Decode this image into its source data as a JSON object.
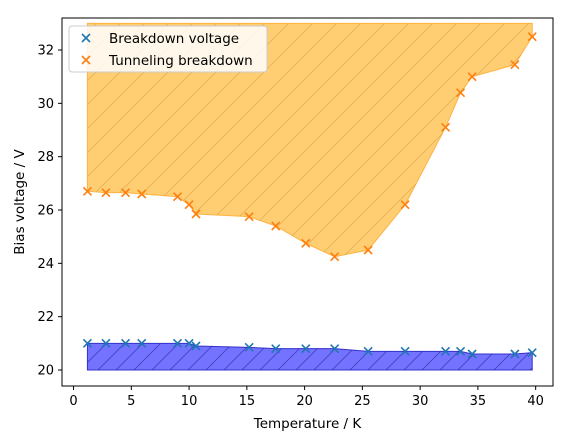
{
  "chart_data": {
    "type": "scatter",
    "xlabel": "Temperature / K",
    "ylabel": "Bias voltage / V",
    "xlim": [
      -1,
      41.5
    ],
    "ylim": [
      19.4,
      33.2
    ],
    "xticks": [
      0,
      5,
      10,
      15,
      20,
      25,
      30,
      35,
      40
    ],
    "yticks": [
      20,
      22,
      24,
      26,
      28,
      30,
      32
    ],
    "legend_position": "upper-left",
    "series": [
      {
        "name": "Breakdown voltage",
        "color": "#1f77b4",
        "marker": "x",
        "fill_color": "#0000ff",
        "fill_to": 20,
        "fill_hatch": "/",
        "x": [
          1.2,
          2.8,
          4.5,
          5.9,
          9.0,
          10.0,
          10.6,
          15.2,
          17.5,
          20.1,
          22.6,
          25.5,
          28.7,
          32.2,
          33.5,
          34.5,
          38.2,
          39.7
        ],
        "y": [
          21.0,
          21.0,
          21.0,
          21.0,
          21.0,
          21.0,
          20.9,
          20.85,
          20.8,
          20.8,
          20.8,
          20.7,
          20.7,
          20.7,
          20.7,
          20.6,
          20.6,
          20.65
        ]
      },
      {
        "name": "Tunneling breakdown",
        "color": "#ff7f0e",
        "marker": "x",
        "fill_color": "#ffa500",
        "fill_to": 33,
        "fill_hatch": "/",
        "x": [
          1.2,
          2.8,
          4.5,
          5.9,
          9.0,
          10.0,
          10.6,
          15.2,
          17.5,
          20.1,
          22.6,
          25.5,
          28.7,
          32.2,
          33.5,
          34.5,
          38.2,
          39.7
        ],
        "y": [
          26.7,
          26.65,
          26.65,
          26.6,
          26.5,
          26.2,
          25.85,
          25.75,
          25.4,
          24.75,
          24.25,
          24.5,
          26.2,
          29.1,
          30.4,
          31.0,
          31.45,
          32.5
        ]
      }
    ]
  }
}
